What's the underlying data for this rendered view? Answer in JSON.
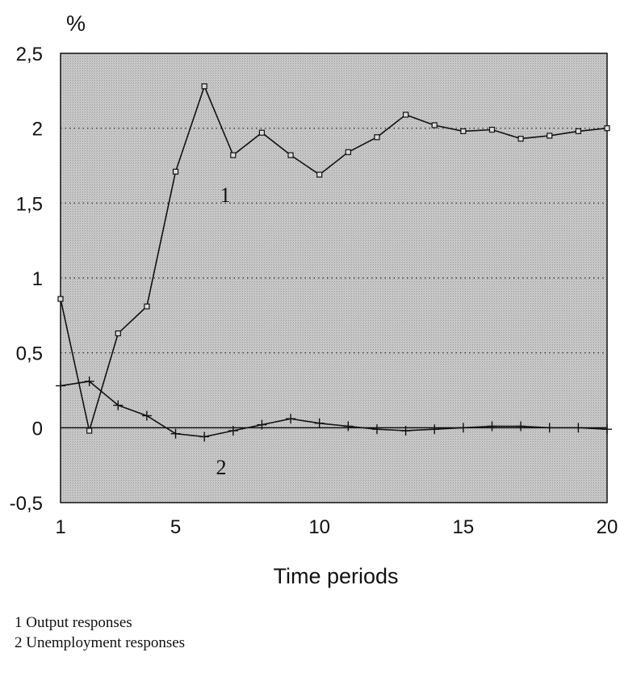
{
  "chart_data": {
    "type": "line",
    "ylabel": "%",
    "xlabel": "Time periods",
    "xlim": [
      1,
      20
    ],
    "ylim": [
      -0.5,
      2.5
    ],
    "x_ticks": [
      1,
      5,
      10,
      15,
      20
    ],
    "y_ticks": [
      "-0,5",
      "0",
      "0,5",
      "1",
      "1,5",
      "2",
      "2,5"
    ],
    "y_tick_values": [
      -0.5,
      0,
      0.5,
      1,
      1.5,
      2,
      2.5
    ],
    "grid": "dotted horizontal at 0.5, 1, 1.5, 2; solid line at 0",
    "background": "#c4c4c4",
    "x": [
      1,
      2,
      3,
      4,
      5,
      6,
      7,
      8,
      9,
      10,
      11,
      12,
      13,
      14,
      15,
      16,
      17,
      18,
      19,
      20
    ],
    "series": [
      {
        "label": "1",
        "marker": "square",
        "values": [
          0.86,
          -0.02,
          0.63,
          0.81,
          1.71,
          2.28,
          1.82,
          1.97,
          1.82,
          1.69,
          1.84,
          1.94,
          2.09,
          2.02,
          1.98,
          1.99,
          1.93,
          1.95,
          1.98,
          2.0
        ]
      },
      {
        "label": "2",
        "marker": "plus",
        "values": [
          0.28,
          0.31,
          0.15,
          0.08,
          -0.04,
          -0.06,
          -0.02,
          0.02,
          0.06,
          0.03,
          0.01,
          -0.01,
          -0.02,
          -0.01,
          0.0,
          0.01,
          0.01,
          0.0,
          0.0,
          -0.01
        ]
      }
    ],
    "legend": [
      "1 Output responses",
      "2 Unemployment responses"
    ]
  }
}
